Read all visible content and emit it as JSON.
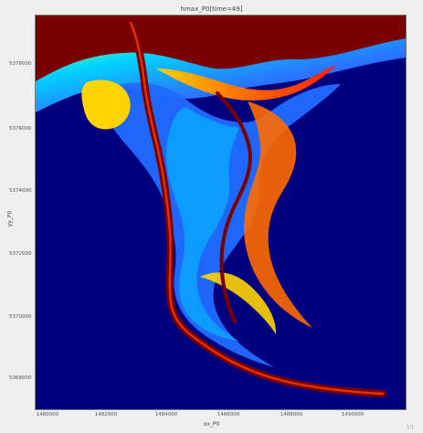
{
  "window": {
    "title": "hmax_P0[time=49]",
    "xlabel": "xx_P0",
    "ylabel": "yy_P0",
    "status_text": "1/1"
  },
  "chart_data": {
    "type": "heatmap",
    "title": "hmax_P0[time=49]",
    "xlabel": "xx_P0",
    "ylabel": "yy_P0",
    "x_ticks": [
      "1480000",
      "1482000",
      "1484000",
      "1486000",
      "1488000",
      "1490000"
    ],
    "y_ticks": [
      "5378000",
      "5376000",
      "5374000",
      "5372000",
      "5370000",
      "5368000"
    ],
    "x_range": [
      1479900,
      1491200
    ],
    "y_range": [
      5367200,
      5379800
    ],
    "colormap": "jet",
    "colors": {
      "background": "#00007f",
      "river": "#7a0000",
      "hot": "#ff4a00",
      "warm": "#ffd400",
      "cool": "#00c8ff",
      "mid": "#1f6bff"
    }
  }
}
